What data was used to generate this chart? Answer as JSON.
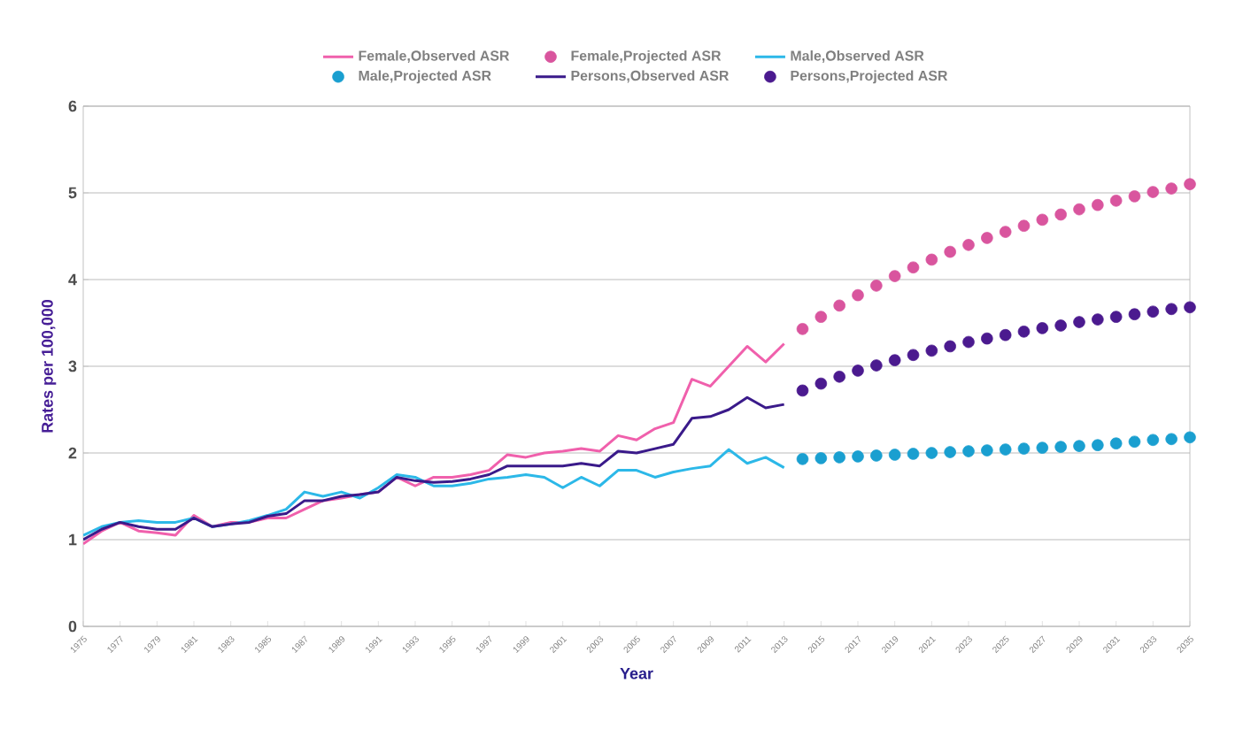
{
  "chart_data": {
    "type": "line",
    "xlabel": "Year",
    "ylabel": "Rates per 100,000",
    "xlim": [
      1975,
      2035
    ],
    "ylim": [
      0,
      6
    ],
    "xticks": [
      1975,
      1977,
      1979,
      1981,
      1983,
      1985,
      1987,
      1989,
      1991,
      1993,
      1995,
      1997,
      1999,
      2001,
      2003,
      2005,
      2007,
      2009,
      2011,
      2013,
      2015,
      2017,
      2019,
      2021,
      2023,
      2025,
      2027,
      2029,
      2031,
      2033,
      2035
    ],
    "yticks": [
      0,
      1,
      2,
      3,
      4,
      5,
      6
    ],
    "grid": "y",
    "legend": "top",
    "series": [
      {
        "name": "Female,Observed ASR",
        "color": "#f060ac",
        "x": [
          1975,
          1976,
          1977,
          1978,
          1979,
          1980,
          1981,
          1982,
          1983,
          1984,
          1985,
          1986,
          1987,
          1988,
          1989,
          1990,
          1991,
          1992,
          1993,
          1994,
          1995,
          1996,
          1997,
          1998,
          1999,
          2000,
          2001,
          2002,
          2003,
          2004,
          2005,
          2006,
          2007,
          2008,
          2009,
          2010,
          2011,
          2012,
          2013
        ],
        "values": [
          0.95,
          1.1,
          1.2,
          1.1,
          1.08,
          1.05,
          1.28,
          1.15,
          1.2,
          1.2,
          1.25,
          1.25,
          1.35,
          1.45,
          1.48,
          1.52,
          1.55,
          1.72,
          1.62,
          1.72,
          1.72,
          1.75,
          1.8,
          1.98,
          1.95,
          2.0,
          2.02,
          2.05,
          2.02,
          2.2,
          2.15,
          2.28,
          2.35,
          2.85,
          2.77,
          3.0,
          3.23,
          3.05,
          3.26
        ]
      },
      {
        "name": "Female,Projected ASR",
        "type": "scatter",
        "marker": "circle",
        "color": "#d9559e",
        "x": [
          2014,
          2015,
          2016,
          2017,
          2018,
          2019,
          2020,
          2021,
          2022,
          2023,
          2024,
          2025,
          2026,
          2027,
          2028,
          2029,
          2030,
          2031,
          2032,
          2033,
          2034,
          2035
        ],
        "values": [
          3.43,
          3.57,
          3.7,
          3.82,
          3.93,
          4.04,
          4.14,
          4.23,
          4.32,
          4.4,
          4.48,
          4.55,
          4.62,
          4.69,
          4.75,
          4.81,
          4.86,
          4.91,
          4.96,
          5.01,
          5.05,
          5.1
        ]
      },
      {
        "name": "Male,Observed ASR",
        "color": "#2cb8e8",
        "x": [
          1975,
          1976,
          1977,
          1978,
          1979,
          1980,
          1981,
          1982,
          1983,
          1984,
          1985,
          1986,
          1987,
          1988,
          1989,
          1990,
          1991,
          1992,
          1993,
          1994,
          1995,
          1996,
          1997,
          1998,
          1999,
          2000,
          2001,
          2002,
          2003,
          2004,
          2005,
          2006,
          2007,
          2008,
          2009,
          2010,
          2011,
          2012,
          2013
        ],
        "values": [
          1.05,
          1.15,
          1.2,
          1.22,
          1.2,
          1.2,
          1.25,
          1.15,
          1.18,
          1.22,
          1.28,
          1.35,
          1.55,
          1.5,
          1.55,
          1.48,
          1.6,
          1.75,
          1.72,
          1.62,
          1.62,
          1.65,
          1.7,
          1.72,
          1.75,
          1.72,
          1.6,
          1.72,
          1.62,
          1.8,
          1.8,
          1.72,
          1.78,
          1.82,
          1.85,
          2.04,
          1.88,
          1.95,
          1.83
        ]
      },
      {
        "name": "Male,Projected ASR",
        "type": "scatter",
        "marker": "circle",
        "color": "#1a9fd0",
        "x": [
          2014,
          2015,
          2016,
          2017,
          2018,
          2019,
          2020,
          2021,
          2022,
          2023,
          2024,
          2025,
          2026,
          2027,
          2028,
          2029,
          2030,
          2031,
          2032,
          2033,
          2034,
          2035
        ],
        "values": [
          1.93,
          1.94,
          1.95,
          1.96,
          1.97,
          1.98,
          1.99,
          2.0,
          2.01,
          2.02,
          2.03,
          2.04,
          2.05,
          2.06,
          2.07,
          2.08,
          2.09,
          2.11,
          2.13,
          2.15,
          2.16,
          2.18
        ]
      },
      {
        "name": "Persons,Observed ASR",
        "color": "#3a1a8a",
        "x": [
          1975,
          1976,
          1977,
          1978,
          1979,
          1980,
          1981,
          1982,
          1983,
          1984,
          1985,
          1986,
          1987,
          1988,
          1989,
          1990,
          1991,
          1992,
          1993,
          1994,
          1995,
          1996,
          1997,
          1998,
          1999,
          2000,
          2001,
          2002,
          2003,
          2004,
          2005,
          2006,
          2007,
          2008,
          2009,
          2010,
          2011,
          2012,
          2013
        ],
        "values": [
          1.0,
          1.12,
          1.2,
          1.15,
          1.12,
          1.12,
          1.25,
          1.15,
          1.18,
          1.2,
          1.27,
          1.3,
          1.45,
          1.45,
          1.5,
          1.52,
          1.55,
          1.72,
          1.68,
          1.66,
          1.67,
          1.7,
          1.75,
          1.85,
          1.85,
          1.85,
          1.85,
          1.88,
          1.85,
          2.02,
          2.0,
          2.05,
          2.1,
          2.4,
          2.42,
          2.5,
          2.64,
          2.52,
          2.56
        ]
      },
      {
        "name": "Persons,Projected ASR",
        "type": "scatter",
        "marker": "circle",
        "color": "#4b1a8f",
        "x": [
          2014,
          2015,
          2016,
          2017,
          2018,
          2019,
          2020,
          2021,
          2022,
          2023,
          2024,
          2025,
          2026,
          2027,
          2028,
          2029,
          2030,
          2031,
          2032,
          2033,
          2034,
          2035
        ],
        "values": [
          2.72,
          2.8,
          2.88,
          2.95,
          3.01,
          3.07,
          3.13,
          3.18,
          3.23,
          3.28,
          3.32,
          3.36,
          3.4,
          3.44,
          3.47,
          3.51,
          3.54,
          3.57,
          3.6,
          3.63,
          3.66,
          3.68
        ]
      }
    ]
  }
}
